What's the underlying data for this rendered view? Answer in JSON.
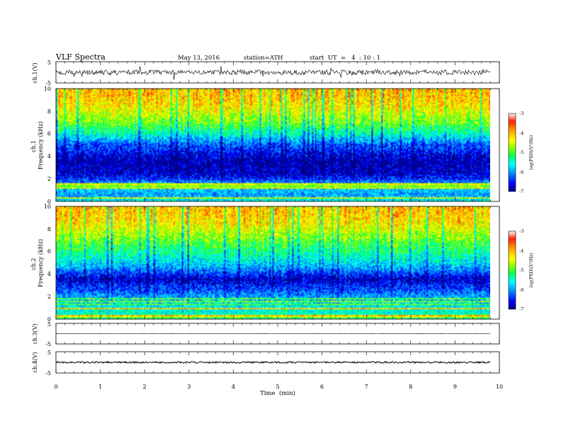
{
  "header": {
    "title": "VLF Spectra",
    "date": "May 13, 2016",
    "station": "station=ATH",
    "start": "start  UT  =   4  : 10 : 1"
  },
  "panels": {
    "ch1_wave": {
      "ylabel": "ch.1(V)",
      "ticks": [
        "5",
        "-5"
      ]
    },
    "ch1_spec": {
      "ylabel": "ch.1\nFrequency  (kHz)",
      "ticks": [
        "0",
        "2",
        "4",
        "6",
        "8",
        "10"
      ]
    },
    "ch2_spec": {
      "ylabel": "ch.2\nFrequency  (kHz)",
      "ticks": [
        "0",
        "2",
        "4",
        "6",
        "8",
        "10"
      ]
    },
    "ch3_wave": {
      "ylabel": "ch.3(V)",
      "ticks": [
        "5",
        "-5"
      ]
    },
    "ch4_wave": {
      "ylabel": "ch.4(V)",
      "ticks": [
        "5",
        "-5"
      ]
    }
  },
  "colorbar": {
    "label": "log(PSD)(V²/Hz)",
    "ticks": [
      "-3",
      "-4",
      "-5",
      "-6",
      "-7"
    ],
    "colors": [
      "#000080",
      "#0000ff",
      "#00a0ff",
      "#00ffff",
      "#00ff60",
      "#80ff00",
      "#ffff00",
      "#ffa000",
      "#ff2000",
      "#ffffff"
    ]
  },
  "x_axis": {
    "label": "Time  (min)",
    "ticks": [
      "0",
      "1",
      "2",
      "3",
      "4",
      "5",
      "6",
      "7",
      "8",
      "9",
      "10"
    ]
  },
  "chart_data": {
    "type": "heatmap",
    "title": "VLF Spectra",
    "xlabel": "Time  (min)",
    "xlim": [
      0,
      10
    ],
    "data_end_min": 9.8,
    "spectrograms": [
      {
        "channel": "ch.1",
        "ylabel": "Frequency  (kHz)",
        "ylim": [
          0,
          10
        ],
        "zlim": [
          -7,
          -3
        ],
        "zlabel": "log(PSD)(V²/Hz)",
        "profile_khz": [
          0,
          0.5,
          1,
          1.5,
          2,
          2.5,
          3,
          3.5,
          4,
          4.5,
          5,
          5.5,
          6,
          6.5,
          7,
          7.5,
          8,
          8.5,
          9,
          9.5,
          10
        ],
        "profile_logpsd": [
          -5.6,
          -6.0,
          -5.8,
          -5.9,
          -6.5,
          -6.8,
          -6.8,
          -6.9,
          -6.7,
          -6.5,
          -6.3,
          -5.9,
          -5.5,
          -5.2,
          -4.9,
          -4.7,
          -4.5,
          -4.3,
          -4.2,
          -4.1,
          -4.1
        ]
      },
      {
        "channel": "ch.2",
        "ylabel": "Frequency  (kHz)",
        "ylim": [
          0,
          10
        ],
        "zlim": [
          -7,
          -3
        ],
        "zlabel": "log(PSD)(V²/Hz)",
        "profile_khz": [
          0,
          0.5,
          1,
          1.5,
          2,
          2.5,
          3,
          3.5,
          4,
          4.5,
          5,
          5.5,
          6,
          6.5,
          7,
          7.5,
          8,
          8.5,
          9,
          9.5,
          10
        ],
        "profile_logpsd": [
          -5.3,
          -5.5,
          -5.6,
          -5.8,
          -6.0,
          -6.3,
          -6.5,
          -6.8,
          -6.4,
          -6.0,
          -5.7,
          -5.5,
          -5.3,
          -5.1,
          -4.9,
          -4.7,
          -4.5,
          -4.3,
          -4.2,
          -4.1,
          -4.1
        ]
      }
    ],
    "waveforms": [
      {
        "channel": "ch.1",
        "ylabel": "ch.1(V)",
        "ylim": [
          -5,
          5
        ],
        "level_v": 0,
        "noise_amplitude_v": 1.2
      },
      {
        "channel": "ch.3",
        "ylabel": "ch.3(V)",
        "ylim": [
          -5,
          5
        ],
        "level_v": 0,
        "noise_amplitude_v": 0.05
      },
      {
        "channel": "ch.4",
        "ylabel": "ch.4(V)",
        "ylim": [
          -5,
          5
        ],
        "level_v": 0,
        "noise_amplitude_v": 0.4
      }
    ]
  }
}
